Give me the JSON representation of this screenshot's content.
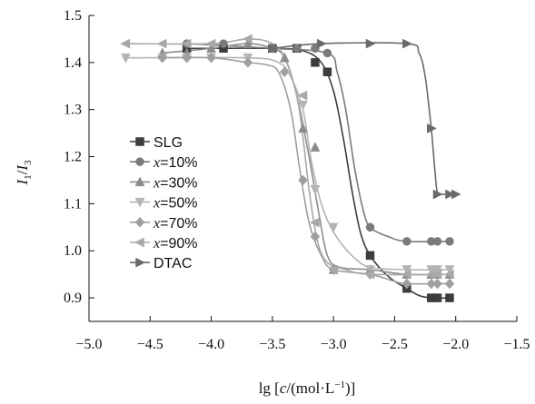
{
  "chart_data": {
    "type": "line",
    "xlabel": {
      "prefix": "lg [",
      "c": "c",
      "mid": "/(mol·L",
      "sup": "−1",
      "suffix": ")]"
    },
    "ylabel": {
      "I": "I",
      "sub1": "1",
      "slash": "/",
      "sub3": "3"
    },
    "xlim": [
      -5.0,
      -1.5
    ],
    "ylim": [
      0.85,
      1.5
    ],
    "x_ticks": [
      -5.0,
      -4.5,
      -4.0,
      -3.5,
      -3.0,
      -2.5,
      -2.0,
      -1.5
    ],
    "x_tick_labels": [
      "−5.0",
      "−4.5",
      "−4.0",
      "−3.5",
      "−3.0",
      "−2.5",
      "−2.0",
      "−1.5"
    ],
    "y_ticks": [
      0.9,
      1.0,
      1.1,
      1.2,
      1.3,
      1.4,
      1.5
    ],
    "y_tick_labels": [
      "0.9",
      "1.0",
      "1.1",
      "1.2",
      "1.3",
      "1.4",
      "1.5"
    ],
    "grid": false,
    "legend_placement": "center-left",
    "series": [
      {
        "name": "SLG",
        "marker": "square",
        "color": "#3d3d3d",
        "points": [
          [
            -4.2,
            1.43
          ],
          [
            -3.9,
            1.43
          ],
          [
            -3.5,
            1.43
          ],
          [
            -3.3,
            1.43
          ],
          [
            -3.15,
            1.4
          ],
          [
            -3.05,
            1.38
          ],
          [
            -2.7,
            0.99
          ],
          [
            -2.4,
            0.92
          ],
          [
            -2.2,
            0.9
          ],
          [
            -2.15,
            0.9
          ],
          [
            -2.05,
            0.9
          ]
        ],
        "curve": [
          [
            -4.2,
            1.43
          ],
          [
            -3.5,
            1.43
          ],
          [
            -3.25,
            1.425
          ],
          [
            -3.1,
            1.4
          ],
          [
            -3.0,
            1.34
          ],
          [
            -2.92,
            1.24
          ],
          [
            -2.85,
            1.13
          ],
          [
            -2.78,
            1.04
          ],
          [
            -2.7,
            0.99
          ],
          [
            -2.55,
            0.945
          ],
          [
            -2.4,
            0.92
          ],
          [
            -2.3,
            0.905
          ],
          [
            -2.2,
            0.9
          ],
          [
            -2.05,
            0.9
          ]
        ]
      },
      {
        "name": "x=10%",
        "marker": "circle",
        "color": "#7a7a7a",
        "points": [
          [
            -4.2,
            1.44
          ],
          [
            -3.9,
            1.44
          ],
          [
            -3.5,
            1.43
          ],
          [
            -3.3,
            1.43
          ],
          [
            -3.15,
            1.43
          ],
          [
            -3.05,
            1.42
          ],
          [
            -2.7,
            1.05
          ],
          [
            -2.4,
            1.02
          ],
          [
            -2.2,
            1.02
          ],
          [
            -2.15,
            1.02
          ],
          [
            -2.05,
            1.02
          ]
        ],
        "curve": [
          [
            -4.2,
            1.44
          ],
          [
            -3.5,
            1.43
          ],
          [
            -3.05,
            1.42
          ],
          [
            -2.97,
            1.38
          ],
          [
            -2.9,
            1.3
          ],
          [
            -2.83,
            1.18
          ],
          [
            -2.76,
            1.09
          ],
          [
            -2.7,
            1.05
          ],
          [
            -2.55,
            1.03
          ],
          [
            -2.4,
            1.02
          ],
          [
            -2.05,
            1.02
          ]
        ]
      },
      {
        "name": "x=30%",
        "marker": "triangle-up",
        "color": "#8c8c8c",
        "points": [
          [
            -4.4,
            1.42
          ],
          [
            -4.2,
            1.42
          ],
          [
            -4.0,
            1.43
          ],
          [
            -3.7,
            1.44
          ],
          [
            -3.4,
            1.41
          ],
          [
            -3.25,
            1.26
          ],
          [
            -3.15,
            1.22
          ],
          [
            -3.0,
            0.96
          ],
          [
            -2.7,
            0.96
          ],
          [
            -2.4,
            0.95
          ],
          [
            -2.2,
            0.95
          ],
          [
            -2.15,
            0.95
          ],
          [
            -2.05,
            0.95
          ]
        ],
        "curve": [
          [
            -4.4,
            1.42
          ],
          [
            -4.0,
            1.43
          ],
          [
            -3.7,
            1.44
          ],
          [
            -3.5,
            1.43
          ],
          [
            -3.4,
            1.41
          ],
          [
            -3.3,
            1.33
          ],
          [
            -3.2,
            1.2
          ],
          [
            -3.12,
            1.08
          ],
          [
            -3.05,
            0.99
          ],
          [
            -2.95,
            0.965
          ],
          [
            -2.7,
            0.96
          ],
          [
            -2.4,
            0.95
          ],
          [
            -2.05,
            0.95
          ]
        ]
      },
      {
        "name": "x=50%",
        "marker": "triangle-down",
        "color": "#b4b4b4",
        "points": [
          [
            -4.7,
            1.41
          ],
          [
            -4.4,
            1.41
          ],
          [
            -4.2,
            1.41
          ],
          [
            -4.0,
            1.41
          ],
          [
            -3.7,
            1.41
          ],
          [
            -3.25,
            1.31
          ],
          [
            -3.15,
            1.13
          ],
          [
            -3.0,
            1.05
          ],
          [
            -2.7,
            0.96
          ],
          [
            -2.4,
            0.96
          ],
          [
            -2.2,
            0.96
          ],
          [
            -2.15,
            0.96
          ],
          [
            -2.05,
            0.96
          ]
        ],
        "curve": [
          [
            -4.7,
            1.41
          ],
          [
            -3.7,
            1.41
          ],
          [
            -3.45,
            1.4
          ],
          [
            -3.35,
            1.37
          ],
          [
            -3.25,
            1.3
          ],
          [
            -3.18,
            1.19
          ],
          [
            -3.1,
            1.1
          ],
          [
            -3.0,
            1.04
          ],
          [
            -2.85,
            0.99
          ],
          [
            -2.7,
            0.965
          ],
          [
            -2.4,
            0.96
          ],
          [
            -2.05,
            0.96
          ]
        ]
      },
      {
        "name": "x=70%",
        "marker": "diamond",
        "color": "#9f9f9f",
        "points": [
          [
            -4.4,
            1.41
          ],
          [
            -4.2,
            1.41
          ],
          [
            -4.0,
            1.41
          ],
          [
            -3.7,
            1.4
          ],
          [
            -3.4,
            1.38
          ],
          [
            -3.25,
            1.15
          ],
          [
            -3.15,
            1.03
          ],
          [
            -3.0,
            0.96
          ],
          [
            -2.7,
            0.95
          ],
          [
            -2.4,
            0.93
          ],
          [
            -2.2,
            0.93
          ],
          [
            -2.15,
            0.93
          ],
          [
            -2.05,
            0.93
          ]
        ],
        "curve": [
          [
            -4.4,
            1.41
          ],
          [
            -4.0,
            1.41
          ],
          [
            -3.7,
            1.4
          ],
          [
            -3.55,
            1.395
          ],
          [
            -3.45,
            1.38
          ],
          [
            -3.35,
            1.3
          ],
          [
            -3.28,
            1.18
          ],
          [
            -3.2,
            1.06
          ],
          [
            -3.1,
            0.99
          ],
          [
            -3.0,
            0.96
          ],
          [
            -2.7,
            0.95
          ],
          [
            -2.5,
            0.935
          ],
          [
            -2.4,
            0.93
          ],
          [
            -2.05,
            0.93
          ]
        ]
      },
      {
        "name": "x=90%",
        "marker": "triangle-left",
        "color": "#a8a8a8",
        "points": [
          [
            -4.7,
            1.44
          ],
          [
            -4.4,
            1.44
          ],
          [
            -4.2,
            1.44
          ],
          [
            -4.0,
            1.44
          ],
          [
            -3.7,
            1.45
          ],
          [
            -3.25,
            1.33
          ],
          [
            -3.15,
            1.06
          ],
          [
            -3.0,
            0.96
          ],
          [
            -2.7,
            0.95
          ],
          [
            -2.4,
            0.95
          ],
          [
            -2.2,
            0.95
          ],
          [
            -2.15,
            0.95
          ],
          [
            -2.05,
            0.95
          ]
        ],
        "curve": [
          [
            -4.7,
            1.44
          ],
          [
            -4.0,
            1.44
          ],
          [
            -3.7,
            1.45
          ],
          [
            -3.5,
            1.44
          ],
          [
            -3.38,
            1.4
          ],
          [
            -3.28,
            1.3
          ],
          [
            -3.2,
            1.13
          ],
          [
            -3.13,
            1.02
          ],
          [
            -3.05,
            0.975
          ],
          [
            -2.9,
            0.96
          ],
          [
            -2.7,
            0.95
          ],
          [
            -2.05,
            0.95
          ]
        ]
      },
      {
        "name": "DTAC",
        "marker": "triangle-right",
        "color": "#6a6a6a",
        "points": [
          [
            -3.5,
            1.43
          ],
          [
            -3.1,
            1.44
          ],
          [
            -2.7,
            1.44
          ],
          [
            -2.4,
            1.44
          ],
          [
            -2.2,
            1.26
          ],
          [
            -2.15,
            1.12
          ],
          [
            -2.05,
            1.12
          ],
          [
            -2.0,
            1.12
          ]
        ],
        "curve": [
          [
            -3.5,
            1.43
          ],
          [
            -3.1,
            1.44
          ],
          [
            -2.4,
            1.44
          ],
          [
            -2.3,
            1.42
          ],
          [
            -2.25,
            1.37
          ],
          [
            -2.2,
            1.26
          ],
          [
            -2.17,
            1.17
          ],
          [
            -2.15,
            1.125
          ],
          [
            -2.1,
            1.12
          ],
          [
            -2.0,
            1.12
          ]
        ]
      }
    ]
  }
}
